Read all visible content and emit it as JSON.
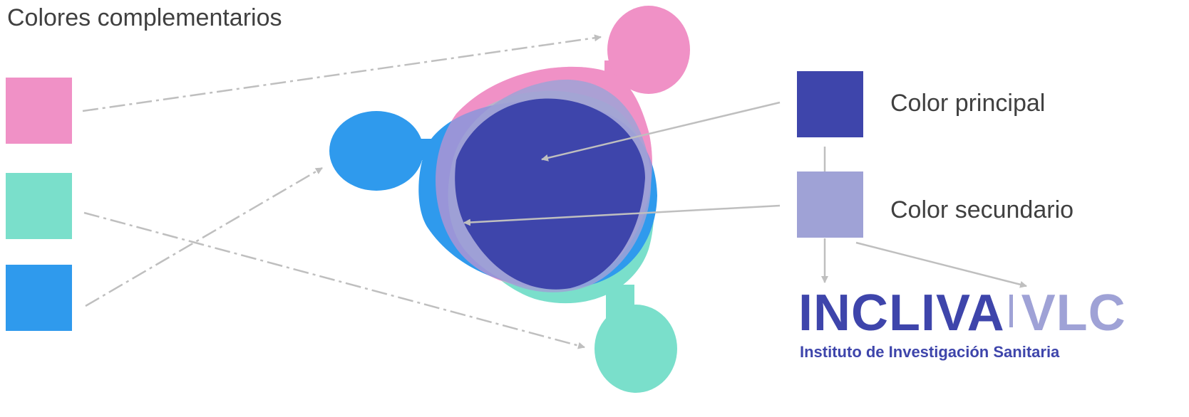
{
  "heading": "Colores complementarios",
  "colors": {
    "pink": "#F091C6",
    "teal": "#7ADFCB",
    "blue": "#2F9AED",
    "principal": "#3E45AB",
    "secundario": "#9FA2D6",
    "arrow": "#BFBFBF"
  },
  "legend": {
    "principal_label": "Color principal",
    "secundario_label": "Color secundario"
  },
  "logo": {
    "word1": "INCLIVA",
    "word2": "VLC",
    "subtitle": "Instituto de Investigación Sanitaria"
  }
}
